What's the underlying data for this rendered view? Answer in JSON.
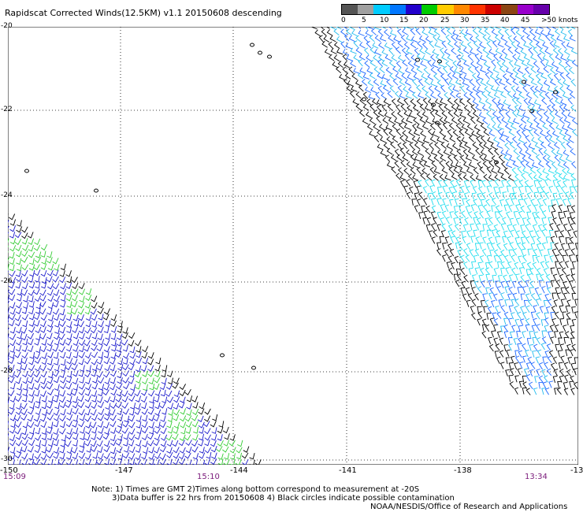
{
  "title": "Rapidscat Corrected Winds(12.5KM) v1.1 20150608 descending",
  "legend": {
    "labels": [
      "0",
      "5",
      "10",
      "15",
      "20",
      "25",
      "30",
      "35",
      "40",
      "45",
      ">50 knots"
    ],
    "colors": [
      "#555555",
      "#a0a0a0",
      "#00ccff",
      "#0077ff",
      "#2200cc",
      "#00cc00",
      "#ffcc00",
      "#ff8800",
      "#ff3300",
      "#cc0000",
      "#8b4513",
      "#9900cc",
      "#6600aa"
    ]
  },
  "axes": {
    "y_labels": [
      "-20",
      "-22",
      "-24",
      "-26",
      "-28",
      "-30"
    ],
    "x_labels": [
      "-150",
      "-147",
      "-144",
      "-141",
      "-138",
      "-13"
    ]
  },
  "times": [
    "15:09",
    "15:10",
    "13:34"
  ],
  "notes": {
    "line1": "Note: 1) Times are GMT 2)Times along bottom correspond to measurement at -20S",
    "line2": "3)Data buffer is 22 hrs from 20150608 4) Black circles indicate possible contamination",
    "line3": "NOAA/NESDIS/Office of Research and Applications"
  }
}
